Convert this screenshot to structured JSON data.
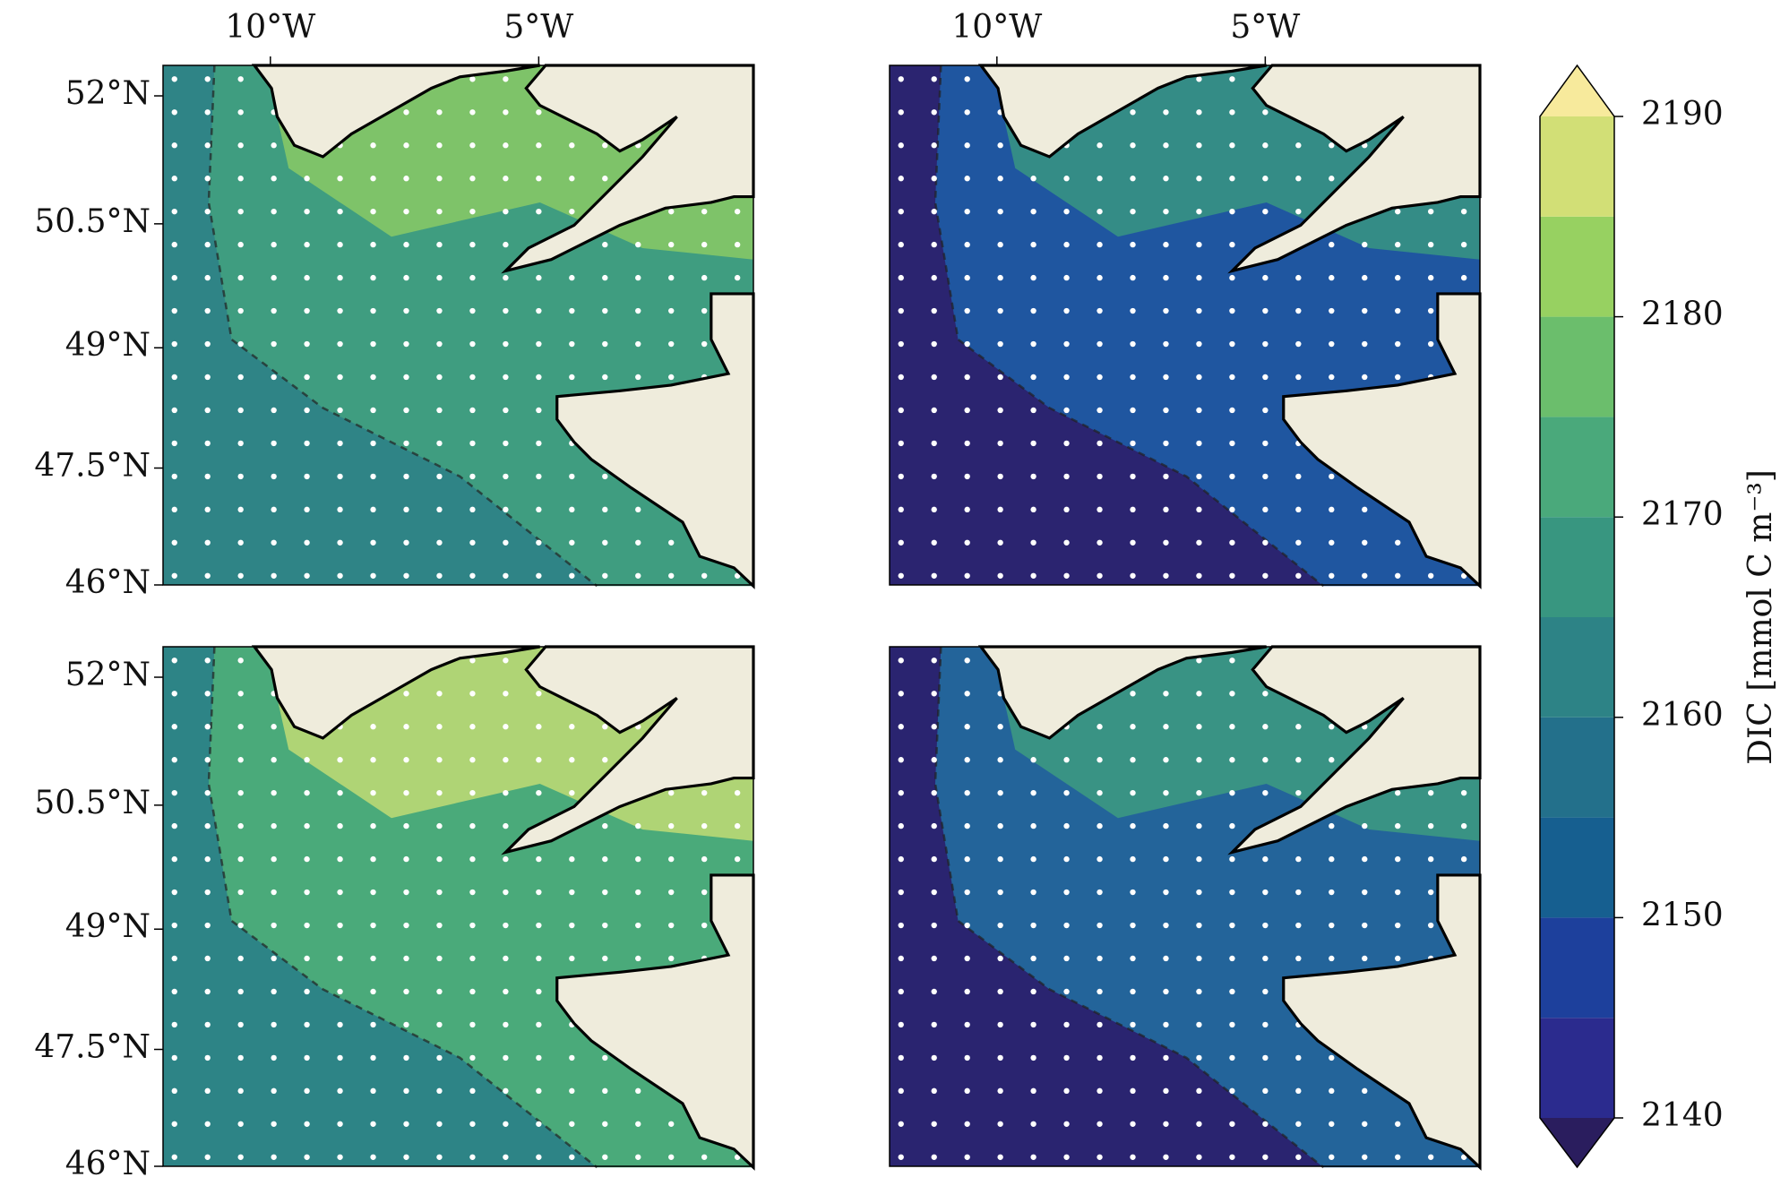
{
  "chart_data": {
    "type": "contour-map",
    "xlim": [
      -12,
      -1
    ],
    "ylim": [
      46,
      52.35
    ],
    "xticks": [
      {
        "value": -10,
        "label": "10°W"
      },
      {
        "value": -5,
        "label": "5°W"
      }
    ],
    "yticks": [
      {
        "value": 52,
        "label": "52°N"
      },
      {
        "value": 50.5,
        "label": "50.5°N"
      },
      {
        "value": 49,
        "label": "49°N"
      },
      {
        "value": 47.5,
        "label": "47.5°N"
      },
      {
        "value": 46,
        "label": "46°N"
      }
    ],
    "colorbar": {
      "label": "DIC [mmol C m⁻³]",
      "lim": [
        2140,
        2190
      ],
      "ticks": [
        2140,
        2150,
        2160,
        2170,
        2180,
        2190
      ],
      "levels": [
        2140,
        2145,
        2150,
        2155,
        2160,
        2165,
        2170,
        2175,
        2180,
        2185,
        2190
      ],
      "colors": [
        "#2b2b8e",
        "#1d409c",
        "#165f90",
        "#23708b",
        "#2d8386",
        "#389680",
        "#4aa97b",
        "#6bbe6c",
        "#97d161",
        "#d2df76"
      ],
      "under_color": "#2a1d5e",
      "over_color": "#f7ea9c"
    }
  }
}
